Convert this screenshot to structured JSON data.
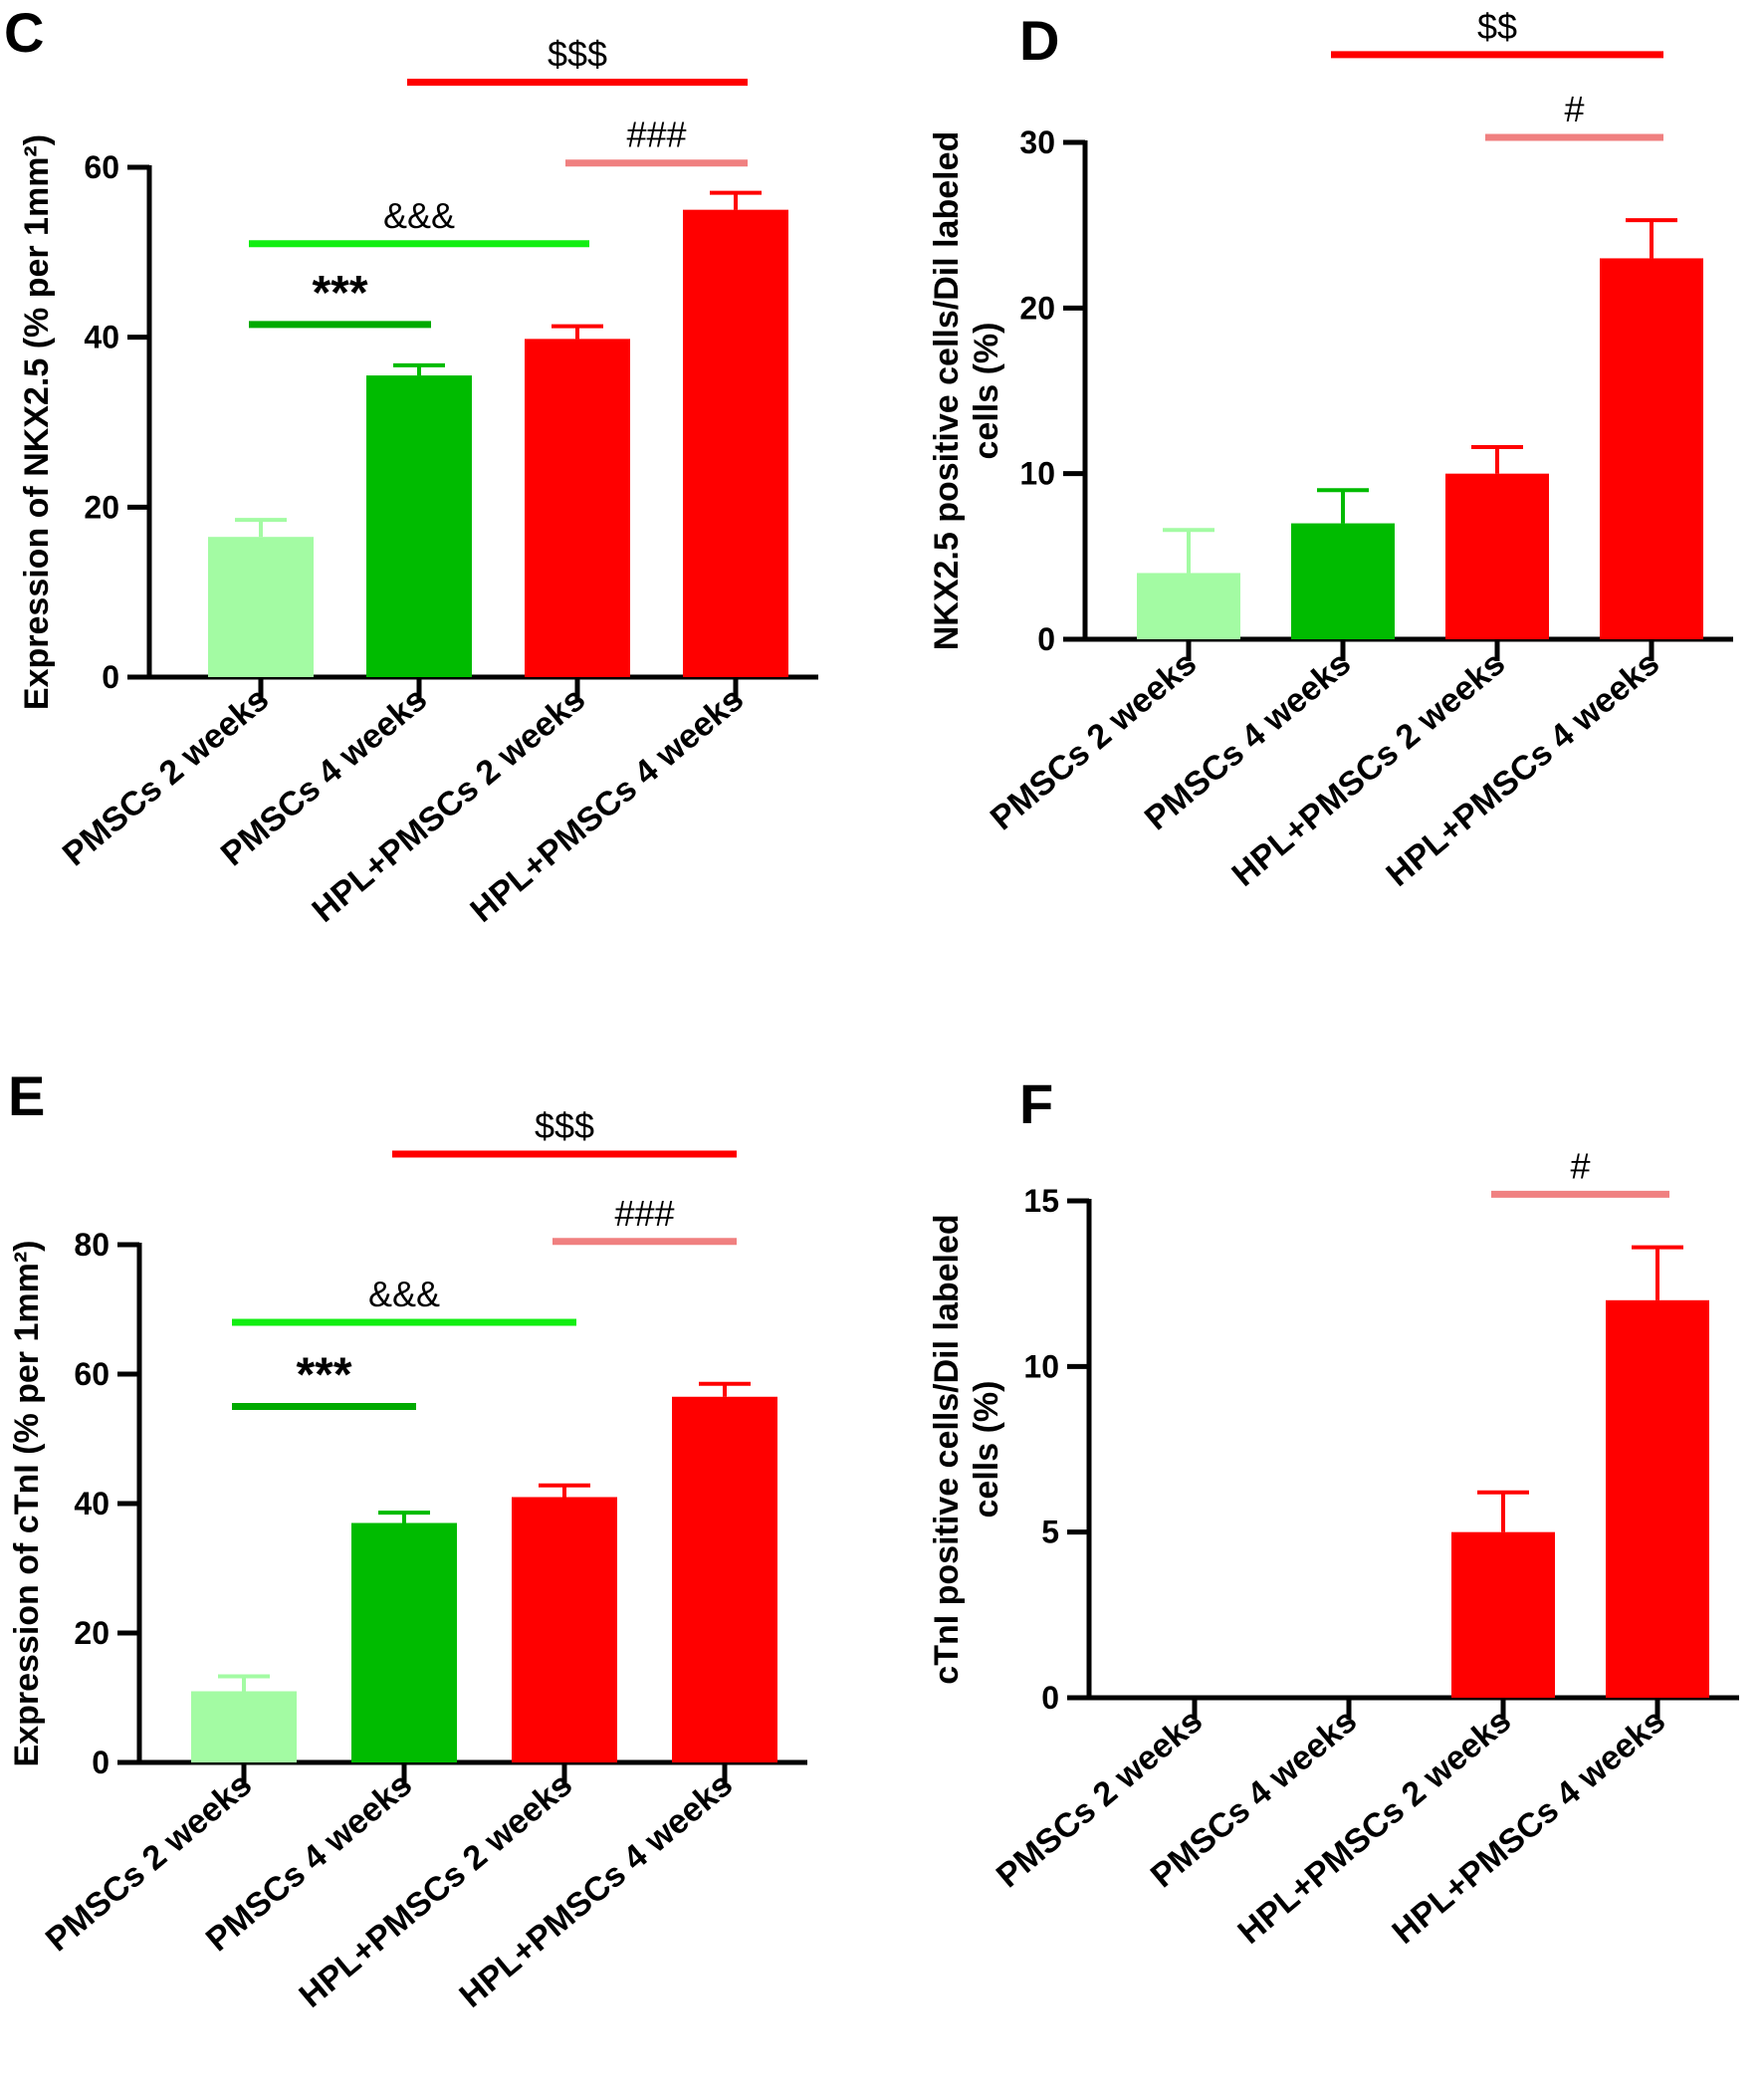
{
  "chart_data": [
    {
      "panel": "C",
      "type": "bar",
      "categories": [
        "PMSCs 2 weeks",
        "PMSCs 4 weeks",
        "HPL+PMSCs 2 weeks",
        "HPL+PMSCs 4 weeks"
      ],
      "values": [
        16.5,
        35.5,
        39.8,
        55.0
      ],
      "errors": [
        2.0,
        1.2,
        1.5,
        2.0
      ],
      "colors": [
        "#a3fba3",
        "#00bb00",
        "#ff0000",
        "#ff0000"
      ],
      "ylabel_lines": [
        "Expression of NKX2.5 (% per 1mm²)"
      ],
      "ylim": [
        0,
        60
      ],
      "yticks": [
        "0",
        "20",
        "40",
        "60"
      ],
      "significance": [
        {
          "label": "***",
          "from": 0,
          "to": 1,
          "y": 41.5,
          "color": "#00aa00",
          "stars": true
        },
        {
          "label": "&&&",
          "from": 0,
          "to": 2,
          "y": 51,
          "color": "#11ee11",
          "stars": false
        },
        {
          "label": "###",
          "from": 2,
          "to": 3,
          "y": 60.5,
          "color": "#f08080",
          "stars": false
        },
        {
          "label": "$$$",
          "from": 1,
          "to": 3,
          "y": 70,
          "color": "#ff0000",
          "stars": false
        }
      ]
    },
    {
      "panel": "D",
      "type": "bar",
      "categories": [
        "PMSCs 2 weeks",
        "PMSCs 4 weeks",
        "HPL+PMSCs 2 weeks",
        "HPL+PMSCs 4 weeks"
      ],
      "values": [
        4,
        7,
        10,
        23
      ],
      "errors": [
        2.6,
        2.0,
        1.6,
        2.3
      ],
      "colors": [
        "#a3fba3",
        "#00bb00",
        "#ff0000",
        "#ff0000"
      ],
      "ylabel_lines": [
        "NKX2.5 positive cells/Dil labeled",
        "cells (%)"
      ],
      "ylim": [
        0,
        30
      ],
      "yticks": [
        "0",
        "10",
        "20",
        "30"
      ],
      "significance": [
        {
          "label": "#",
          "from": 2,
          "to": 3,
          "y": 30.3,
          "color": "#f08080",
          "stars": false
        },
        {
          "label": "$$",
          "from": 1,
          "to": 3,
          "y": 35.3,
          "color": "#ff0000",
          "stars": false
        }
      ]
    },
    {
      "panel": "E",
      "type": "bar",
      "categories": [
        "PMSCs 2 weeks",
        "PMSCs 4 weeks",
        "HPL+PMSCs 2 weeks",
        "HPL+PMSCs 4 weeks"
      ],
      "values": [
        11,
        37,
        41,
        56.5
      ],
      "errors": [
        2.3,
        1.6,
        1.8,
        2.0
      ],
      "colors": [
        "#a3fba3",
        "#00bb00",
        "#ff0000",
        "#ff0000"
      ],
      "ylabel_lines": [
        "Expression of cTnI (% per 1mm²)"
      ],
      "ylim": [
        0,
        80
      ],
      "yticks": [
        "0",
        "20",
        "40",
        "60",
        "80"
      ],
      "significance": [
        {
          "label": "***",
          "from": 0,
          "to": 1,
          "y": 55,
          "color": "#00aa00",
          "stars": true
        },
        {
          "label": "&&&",
          "from": 0,
          "to": 2,
          "y": 68,
          "color": "#11ee11",
          "stars": false
        },
        {
          "label": "###",
          "from": 2,
          "to": 3,
          "y": 80.5,
          "color": "#f08080",
          "stars": false
        },
        {
          "label": "$$$",
          "from": 1,
          "to": 3,
          "y": 94,
          "color": "#ff0000",
          "stars": false
        }
      ]
    },
    {
      "panel": "F",
      "type": "bar",
      "categories": [
        "PMSCs 2 weeks",
        "PMSCs 4 weeks",
        "HPL+PMSCs 2 weeks",
        "HPL+PMSCs 4 weeks"
      ],
      "values": [
        0,
        0,
        5,
        12
      ],
      "errors": [
        0,
        0,
        1.2,
        1.6
      ],
      "colors": [
        "#a3fba3",
        "#00bb00",
        "#ff0000",
        "#ff0000"
      ],
      "ylabel_lines": [
        "cTnI positive cells/Dil labeled",
        "cells  (%)"
      ],
      "ylim": [
        0,
        15
      ],
      "yticks": [
        "0",
        "5",
        "10",
        "15"
      ],
      "significance": [
        {
          "label": "#",
          "from": 2,
          "to": 3,
          "y": 15.2,
          "color": "#f08080",
          "stars": false
        }
      ]
    }
  ]
}
